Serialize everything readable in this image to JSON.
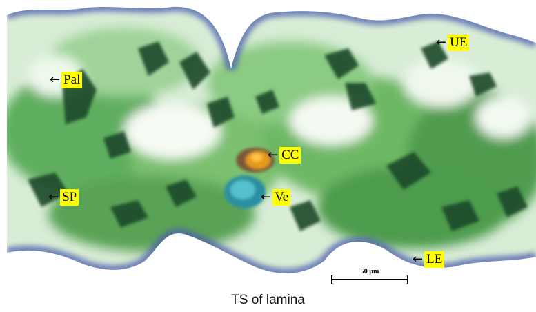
{
  "labels": [
    {
      "text": "UE"
    },
    {
      "text": "Pal"
    },
    {
      "text": "CC"
    },
    {
      "text": "SP"
    },
    {
      "text": "Ve"
    },
    {
      "text": "LE"
    }
  ],
  "scale_bar": {
    "text": "50 µm"
  },
  "caption": "TS of lamina",
  "colors": {
    "tissue_green": "#2e8a3a",
    "dark_green": "#1d4a2a",
    "epidermis_blue": "#4a5ea8",
    "crystal_orange": "#e59a1a",
    "vessel_teal": "#3aa8b8",
    "label_yellow": "#ffff00"
  }
}
